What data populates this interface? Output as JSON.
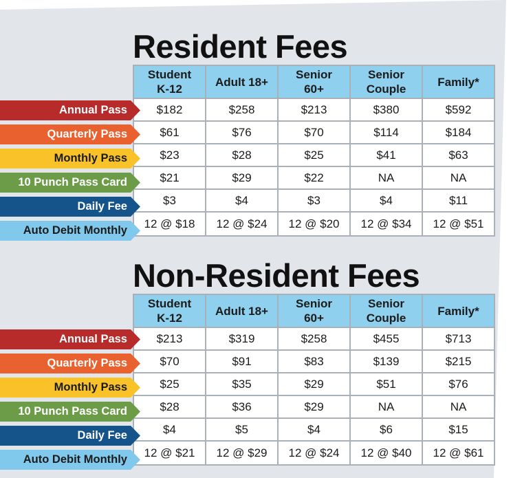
{
  "colors": {
    "panel": "#e2e5ea",
    "header": "#8ed0ee",
    "annual_pass": "#b82b2b",
    "quarterly_pass": "#e9612f",
    "monthly_pass": "#f8c228",
    "punch_card": "#6c9c48",
    "daily_fee": "#14548b",
    "auto_debit": "#81c9ec"
  },
  "columns": [
    "Student\nK-12",
    "Adult 18+",
    "Senior\n60+",
    "Senior\nCouple",
    "Family*"
  ],
  "row_labels": [
    "Annual Pass",
    "Quarterly Pass",
    "Monthly Pass",
    "10 Punch Pass Card",
    "Daily Fee",
    "Auto Debit Monthly"
  ],
  "resident": {
    "title": "Resident Fees",
    "rows": [
      [
        "$182",
        "$258",
        "$213",
        "$380",
        "$592"
      ],
      [
        "$61",
        "$76",
        "$70",
        "$114",
        "$184"
      ],
      [
        "$23",
        "$28",
        "$25",
        "$41",
        "$63"
      ],
      [
        "$21",
        "$29",
        "$22",
        "NA",
        "NA"
      ],
      [
        "$3",
        "$4",
        "$3",
        "$4",
        "$11"
      ],
      [
        "12 @ $18",
        "12 @ $24",
        "12 @ $20",
        "12 @ $34",
        "12 @ $51"
      ]
    ]
  },
  "nonresident": {
    "title": "Non-Resident Fees",
    "rows": [
      [
        "$213",
        "$319",
        "$258",
        "$455",
        "$713"
      ],
      [
        "$70",
        "$91",
        "$83",
        "$139",
        "$215"
      ],
      [
        "$25",
        "$35",
        "$29",
        "$51",
        "$76"
      ],
      [
        "$28",
        "$36",
        "$29",
        "NA",
        "NA"
      ],
      [
        "$4",
        "$5",
        "$4",
        "$6",
        "$15"
      ],
      [
        "12 @ $21",
        "12 @ $29",
        "12 @ $24",
        "12 @ $40",
        "12 @ $61"
      ]
    ]
  }
}
